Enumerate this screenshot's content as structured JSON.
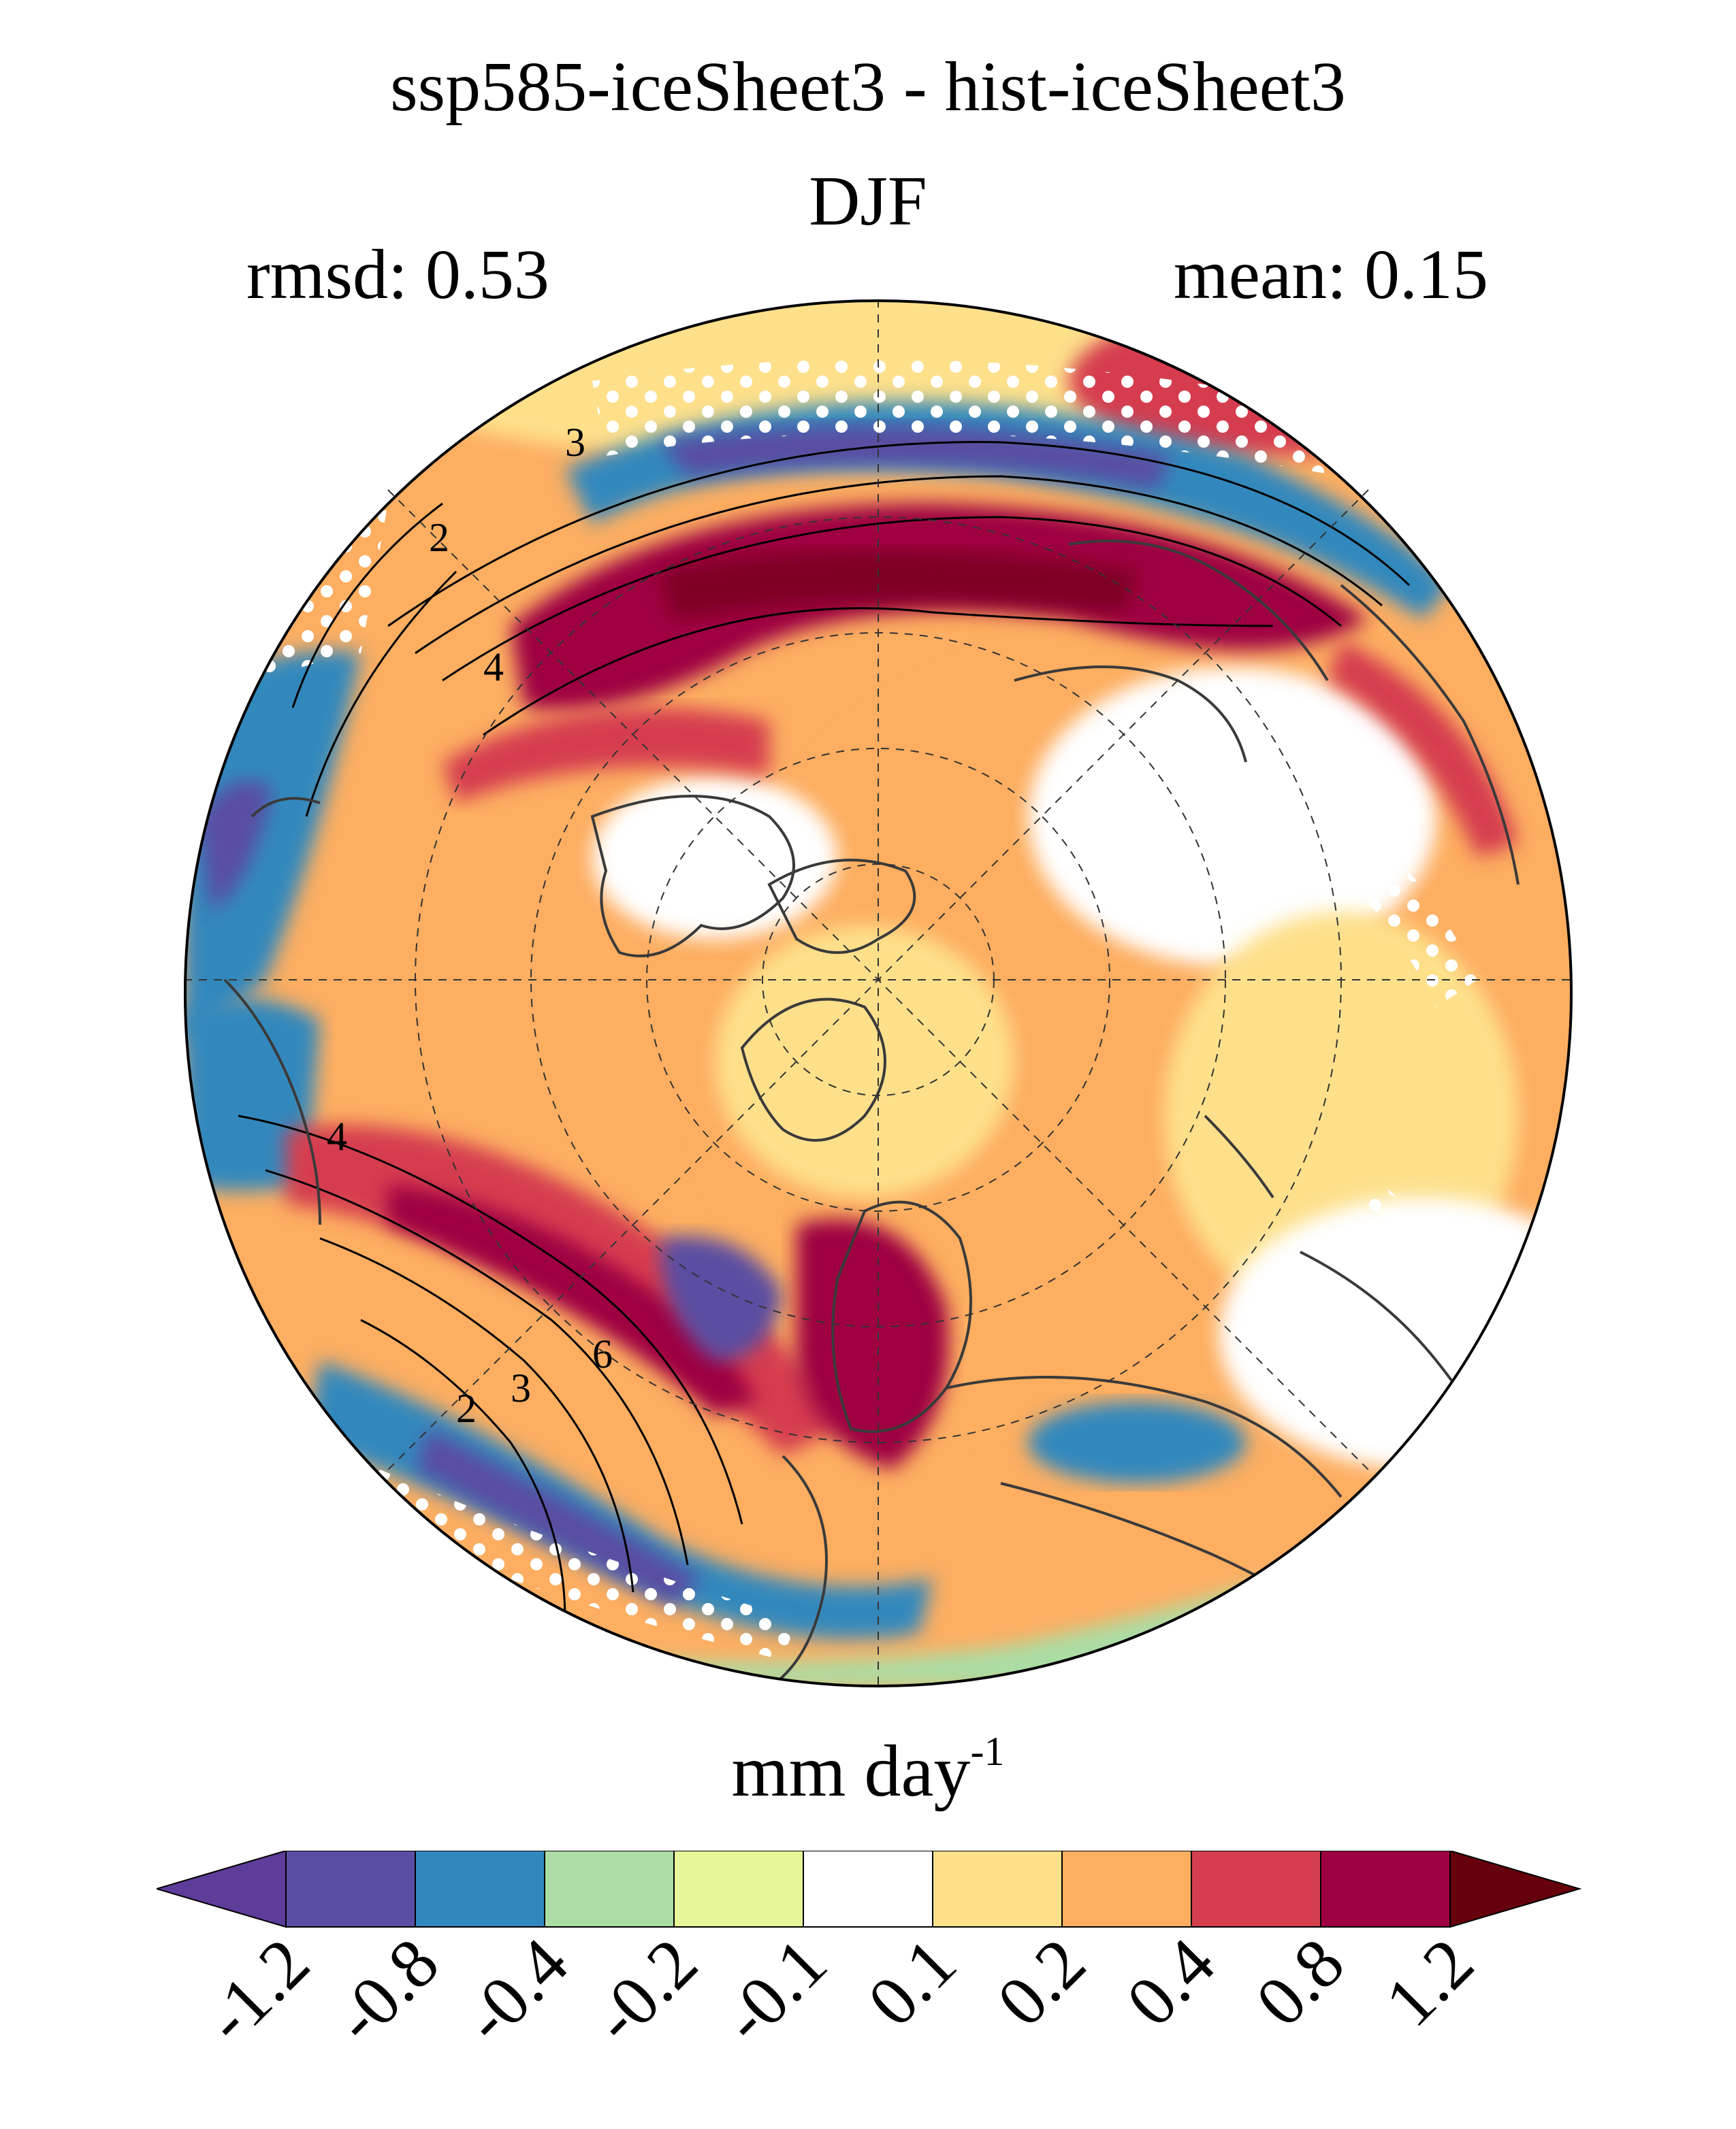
{
  "header": {
    "title": "ssp585-iceSheet3 - hist-iceSheet3",
    "season": "DJF",
    "rmsd_label": "rmsd: 0.53",
    "mean_label": "mean: 0.15"
  },
  "map": {
    "projection": "north-polar-stereographic",
    "field": "precipitation change",
    "contour_labels": [
      "3",
      "2",
      "4",
      "4",
      "6",
      "3",
      "2"
    ],
    "stippling": true,
    "graticule": "dashed"
  },
  "colorbar": {
    "units_text": "mm day",
    "units_exponent": "-1",
    "tick_labels": [
      "-1.2",
      "-0.8",
      "-0.4",
      "-0.2",
      "-0.1",
      "0.1",
      "0.2",
      "0.4",
      "0.8",
      "1.2"
    ],
    "colors": [
      "#5e3c99",
      "#5a4ea2",
      "#3288bd",
      "#abdda4",
      "#e6f598",
      "#ffffff",
      "#fee08b",
      "#fdae61",
      "#d53e4f",
      "#9e0142",
      "#67000d"
    ],
    "extend": "both"
  }
}
